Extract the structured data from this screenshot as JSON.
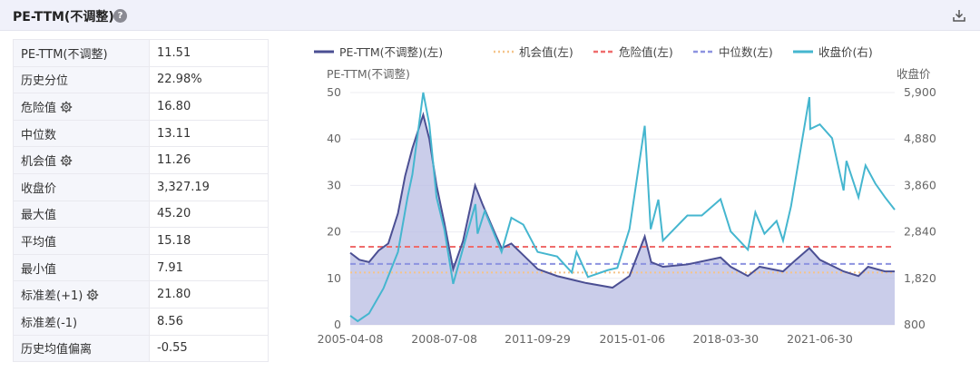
{
  "header": {
    "title": "PE-TTM(不调整)",
    "help_icon": "?",
    "download_icon": "download-icon"
  },
  "stats": [
    {
      "label": "PE-TTM(不调整)",
      "value": "11.51",
      "gear": false
    },
    {
      "label": "历史分位",
      "value": "22.98%",
      "gear": false
    },
    {
      "label": "危险值",
      "value": "16.80",
      "gear": true
    },
    {
      "label": "中位数",
      "value": "13.11",
      "gear": false
    },
    {
      "label": "机会值",
      "value": "11.26",
      "gear": true
    },
    {
      "label": "收盘价",
      "value": "3,327.19",
      "gear": false
    },
    {
      "label": "最大值",
      "value": "45.20",
      "gear": false
    },
    {
      "label": "平均值",
      "value": "15.18",
      "gear": false
    },
    {
      "label": "最小值",
      "value": "7.91",
      "gear": false
    },
    {
      "label": "标准差(+1)",
      "value": "21.80",
      "gear": true
    },
    {
      "label": "标准差(-1)",
      "value": "8.56",
      "gear": false
    },
    {
      "label": "历史均值偏离",
      "value": "-0.55",
      "gear": false
    }
  ],
  "chart_data": {
    "type": "line",
    "left_axis_title": "PE-TTM(不调整)",
    "right_axis_title": "收盘价",
    "left_ylim": [
      0,
      50
    ],
    "left_ticks": [
      "0",
      "10",
      "20",
      "30",
      "40",
      "50"
    ],
    "right_ylim": [
      800,
      5900
    ],
    "right_ticks": [
      "800",
      "1,820",
      "2,840",
      "3,860",
      "4,880",
      "5,900"
    ],
    "x_range": [
      "2005-04-08",
      "2024-01-31"
    ],
    "x_ticks": [
      "2005-04-08",
      "2008-07-08",
      "2011-09-29",
      "2015-01-06",
      "2018-03-30",
      "2021-06-30"
    ],
    "legend": [
      {
        "name": "PE-TTM(不调整)(左)",
        "color": "#4b4f93",
        "style": "solid"
      },
      {
        "name": "机会值(左)",
        "color": "#f5c48a",
        "style": "dotted"
      },
      {
        "name": "危险值(左)",
        "color": "#ef6c6c",
        "style": "dashed"
      },
      {
        "name": "中位数(左)",
        "color": "#8d93e0",
        "style": "dashed"
      },
      {
        "name": "收盘价(右)",
        "color": "#45b6cf",
        "style": "solid"
      }
    ],
    "reference_lines": {
      "机会值": 11.26,
      "危险值": 16.8,
      "中位数": 13.11
    },
    "series": [
      {
        "name": "PE-TTM(不调整)(左)",
        "axis": "left",
        "points": [
          [
            "2005-04-08",
            15.5
          ],
          [
            "2005-08-01",
            14.0
          ],
          [
            "2005-12-01",
            13.5
          ],
          [
            "2006-04-01",
            16.0
          ],
          [
            "2006-08-01",
            17.5
          ],
          [
            "2006-12-01",
            24.0
          ],
          [
            "2007-03-01",
            32.0
          ],
          [
            "2007-06-01",
            38.0
          ],
          [
            "2007-10-16",
            45.2
          ],
          [
            "2008-01-01",
            40.0
          ],
          [
            "2008-04-01",
            30.0
          ],
          [
            "2008-07-08",
            22.0
          ],
          [
            "2008-10-28",
            12.0
          ],
          [
            "2009-03-01",
            18.0
          ],
          [
            "2009-08-01",
            30.0
          ],
          [
            "2009-11-01",
            26.0
          ],
          [
            "2010-04-01",
            20.0
          ],
          [
            "2010-07-01",
            16.5
          ],
          [
            "2010-11-01",
            17.5
          ],
          [
            "2011-04-01",
            15.0
          ],
          [
            "2011-09-29",
            12.0
          ],
          [
            "2012-06-01",
            10.5
          ],
          [
            "2013-06-01",
            9.0
          ],
          [
            "2014-05-01",
            8.0
          ],
          [
            "2014-12-01",
            10.5
          ],
          [
            "2015-06-12",
            19.0
          ],
          [
            "2015-09-01",
            13.5
          ],
          [
            "2016-01-28",
            12.5
          ],
          [
            "2016-12-01",
            13.0
          ],
          [
            "2018-01-24",
            14.5
          ],
          [
            "2018-06-01",
            12.5
          ],
          [
            "2019-01-04",
            10.5
          ],
          [
            "2019-06-01",
            12.5
          ],
          [
            "2020-03-23",
            11.5
          ],
          [
            "2020-09-01",
            14.0
          ],
          [
            "2021-02-18",
            16.5
          ],
          [
            "2021-06-30",
            14.0
          ],
          [
            "2022-04-26",
            11.5
          ],
          [
            "2022-10-31",
            10.5
          ],
          [
            "2023-03-01",
            12.5
          ],
          [
            "2023-10-01",
            11.5
          ],
          [
            "2024-01-31",
            11.51
          ]
        ]
      },
      {
        "name": "收盘价(右)",
        "axis": "right",
        "points": [
          [
            "2005-04-08",
            1000
          ],
          [
            "2005-07-11",
            880
          ],
          [
            "2005-12-01",
            1050
          ],
          [
            "2006-06-01",
            1600
          ],
          [
            "2006-12-01",
            2400
          ],
          [
            "2007-04-01",
            3600
          ],
          [
            "2007-06-01",
            4100
          ],
          [
            "2007-10-16",
            5900
          ],
          [
            "2008-01-01",
            5200
          ],
          [
            "2008-04-01",
            3600
          ],
          [
            "2008-07-08",
            2900
          ],
          [
            "2008-10-28",
            1700
          ],
          [
            "2009-02-01",
            2300
          ],
          [
            "2009-08-04",
            3450
          ],
          [
            "2009-09-01",
            2800
          ],
          [
            "2009-12-01",
            3300
          ],
          [
            "2010-07-01",
            2400
          ],
          [
            "2010-11-01",
            3150
          ],
          [
            "2011-04-01",
            3000
          ],
          [
            "2011-09-29",
            2400
          ],
          [
            "2012-06-01",
            2300
          ],
          [
            "2012-12-03",
            1950
          ],
          [
            "2013-02-01",
            2400
          ],
          [
            "2013-06-25",
            1850
          ],
          [
            "2014-03-01",
            2000
          ],
          [
            "2014-07-01",
            2050
          ],
          [
            "2014-12-01",
            2900
          ],
          [
            "2015-06-12",
            5170
          ],
          [
            "2015-08-26",
            2900
          ],
          [
            "2015-12-01",
            3550
          ],
          [
            "2016-01-28",
            2650
          ],
          [
            "2016-12-01",
            3200
          ],
          [
            "2017-06-01",
            3200
          ],
          [
            "2018-01-24",
            3560
          ],
          [
            "2018-06-01",
            2850
          ],
          [
            "2019-01-04",
            2450
          ],
          [
            "2019-04-08",
            3270
          ],
          [
            "2019-08-01",
            2800
          ],
          [
            "2020-01-01",
            3080
          ],
          [
            "2020-03-23",
            2650
          ],
          [
            "2020-07-01",
            3400
          ],
          [
            "2021-02-18",
            5800
          ],
          [
            "2021-03-01",
            5100
          ],
          [
            "2021-06-30",
            5200
          ],
          [
            "2021-12-01",
            4900
          ],
          [
            "2022-04-26",
            3750
          ],
          [
            "2022-06-01",
            4400
          ],
          [
            "2022-10-31",
            3600
          ],
          [
            "2023-01-28",
            4300
          ],
          [
            "2023-06-01",
            3900
          ],
          [
            "2023-10-01",
            3600
          ],
          [
            "2024-01-31",
            3327.19
          ]
        ]
      }
    ]
  }
}
